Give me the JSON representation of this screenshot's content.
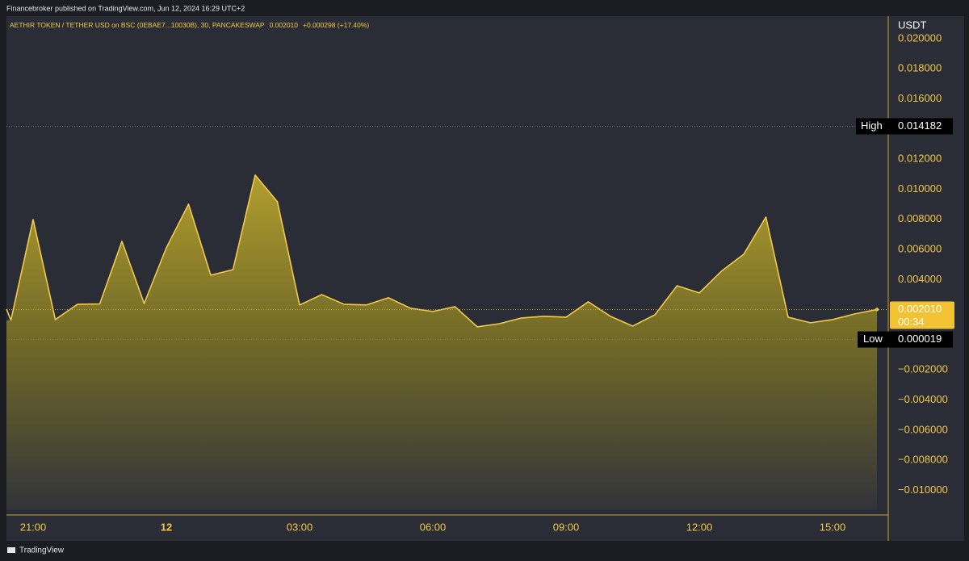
{
  "header": {
    "published": "Financebroker published on TradingView.com, Jun 12, 2024 16:29 UTC+2"
  },
  "chart_data": {
    "type": "area",
    "symbol": "AETHIR TOKEN / TETHER USD on BSC (0EBAE7...10030B), 30, PANCAKESWAP",
    "change": "+0.000298 (+17.40%)",
    "currency": "USDT",
    "categories": [
      null,
      "21:00",
      null,
      null,
      null,
      null,
      null,
      "12",
      null,
      null,
      null,
      null,
      null,
      "03:00",
      null,
      null,
      null,
      null,
      null,
      "06:00",
      null,
      null,
      null,
      null,
      null,
      "09:00",
      null,
      null,
      null,
      null,
      null,
      "12:00",
      null,
      null,
      null,
      null,
      null,
      "15:00",
      null,
      null
    ],
    "values": [
      0.00129,
      0.00799,
      0.00134,
      0.00236,
      0.00238,
      0.00654,
      0.00241,
      0.00611,
      0.00901,
      0.00429,
      0.00466,
      0.01094,
      0.00917,
      0.00231,
      0.003,
      0.00236,
      0.00231,
      0.00279,
      0.00209,
      0.00188,
      0.0022,
      0.00086,
      0.00107,
      0.00145,
      0.00156,
      0.0015,
      0.00252,
      0.00156,
      0.00091,
      0.00166,
      0.00359,
      0.00311,
      0.00456,
      0.00568,
      0.00815,
      0.0015,
      0.00113,
      0.00134,
      0.00172,
      0.00201
    ],
    "color": "#f2c94c",
    "ylim": [
      -0.01164,
      0.0215
    ],
    "yticks": [
      {
        "value": 0.02,
        "label": "0.020000"
      },
      {
        "value": 0.018,
        "label": "0.018000"
      },
      {
        "value": 0.016,
        "label": "0.016000"
      },
      {
        "value": 0.012,
        "label": "0.012000"
      },
      {
        "value": 0.01,
        "label": "0.010000"
      },
      {
        "value": 0.008,
        "label": "0.008000"
      },
      {
        "value": 0.006,
        "label": "0.006000"
      },
      {
        "value": 0.004,
        "label": "0.004000"
      },
      {
        "value": -0.002,
        "label": "−0.002000"
      },
      {
        "value": -0.004,
        "label": "−0.004000"
      },
      {
        "value": -0.006,
        "label": "−0.006000"
      },
      {
        "value": -0.008,
        "label": "−0.008000"
      },
      {
        "value": -0.01,
        "label": "−0.010000"
      }
    ],
    "high": {
      "label": "High",
      "value": 0.014182
    },
    "low": {
      "label": "Low",
      "value": 1.9e-05
    },
    "last": {
      "value": 0.00201,
      "label": "0.002010"
    },
    "countdown": "00:34"
  },
  "footer": {
    "brand": "TradingView"
  }
}
